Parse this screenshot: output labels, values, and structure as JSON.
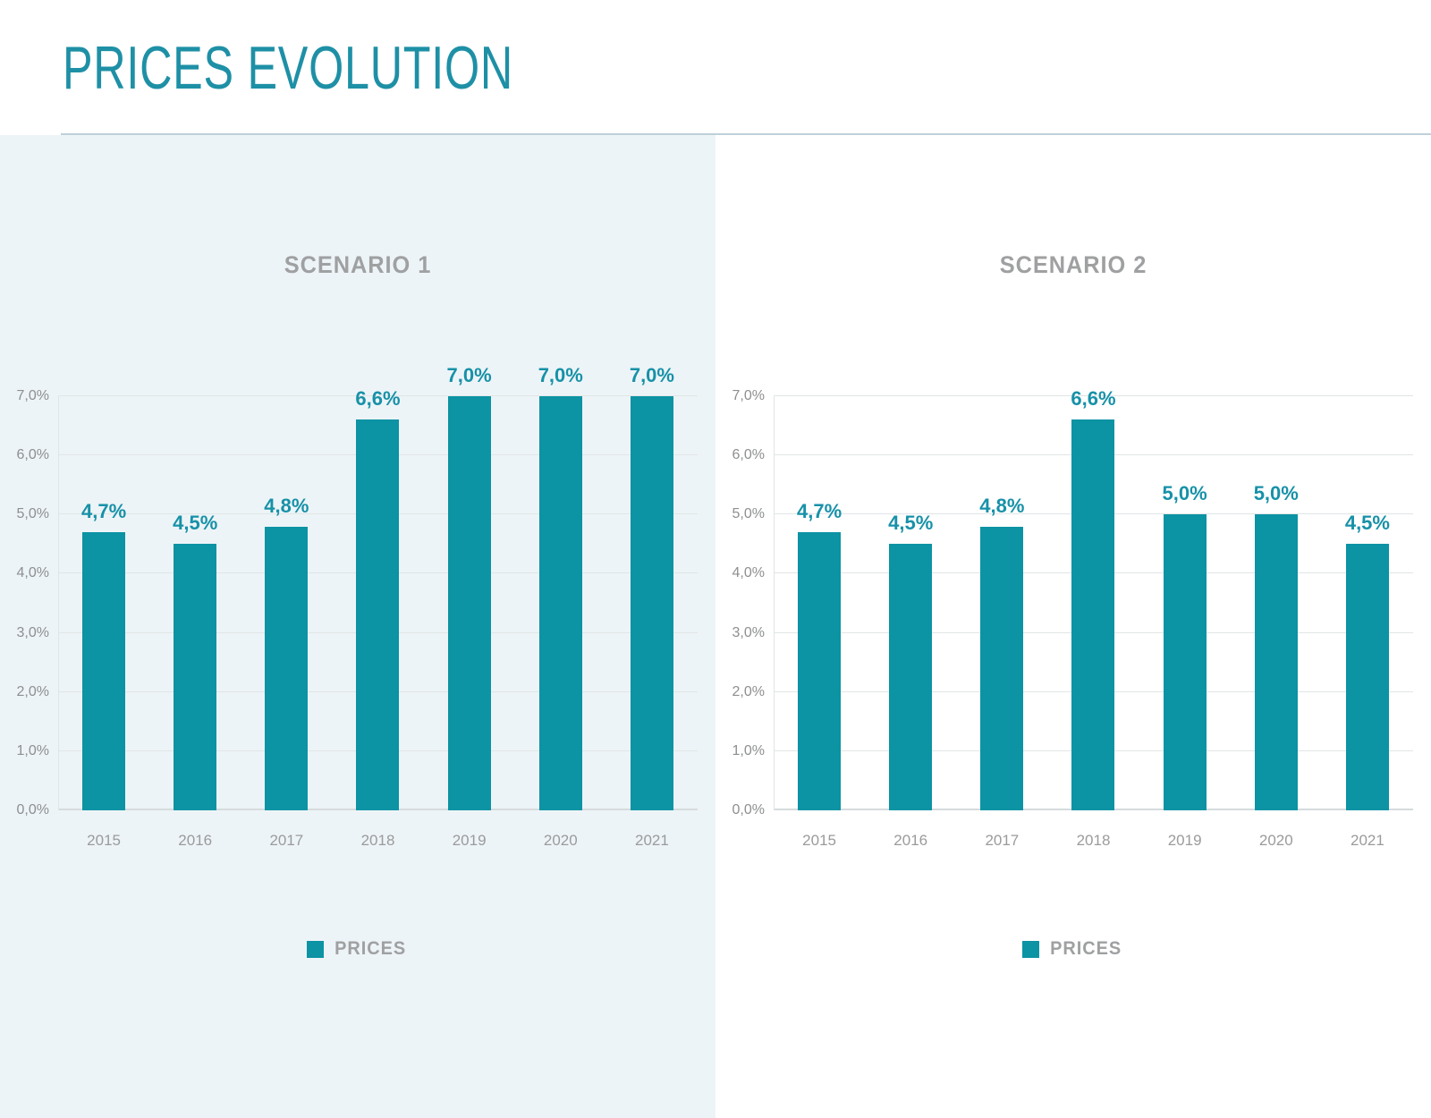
{
  "page": {
    "title": "PRICES EVOLUTION"
  },
  "colors": {
    "accent": "#0c93a4",
    "title": "#1e90a6",
    "value": "#1791a8",
    "tick": "#8d8f90",
    "xtick": "#9a9b9c",
    "muted": "#9fa0a2",
    "grid": "#e1e5e6",
    "baseline": "#d6dbdd",
    "panel": "#edf4f7",
    "divider": "#bed0d9"
  },
  "chart_data": [
    {
      "type": "bar",
      "title": "SCENARIO 1",
      "categories": [
        "2015",
        "2016",
        "2017",
        "2018",
        "2019",
        "2020",
        "2021"
      ],
      "values": [
        4.7,
        4.5,
        4.8,
        6.6,
        7.0,
        7.0,
        7.0
      ],
      "labels": [
        "4,7%",
        "4,5%",
        "4,8%",
        "6,6%",
        "7,0%",
        "7,0%",
        "7,0%"
      ],
      "yticks": [
        "0,0%",
        "1,0%",
        "2,0%",
        "3,0%",
        "4,0%",
        "5,0%",
        "6,0%",
        "7,0%"
      ],
      "ylim": [
        0,
        7
      ],
      "xlabel": "",
      "ylabel": "",
      "grid": true,
      "legend": [
        "PRICES"
      ],
      "legend_position": "bottom",
      "series_color": "#0c93a4"
    },
    {
      "type": "bar",
      "title": "SCENARIO 2",
      "categories": [
        "2015",
        "2016",
        "2017",
        "2018",
        "2019",
        "2020",
        "2021"
      ],
      "values": [
        4.7,
        4.5,
        4.8,
        6.6,
        5.0,
        5.0,
        4.5
      ],
      "labels": [
        "4,7%",
        "4,5%",
        "4,8%",
        "6,6%",
        "5,0%",
        "5,0%",
        "4,5%"
      ],
      "yticks": [
        "0,0%",
        "1,0%",
        "2,0%",
        "3,0%",
        "4,0%",
        "5,0%",
        "6,0%",
        "7,0%"
      ],
      "ylim": [
        0,
        7
      ],
      "xlabel": "",
      "ylabel": "",
      "grid": true,
      "legend": [
        "PRICES"
      ],
      "legend_position": "bottom",
      "series_color": "#0c93a4"
    }
  ]
}
